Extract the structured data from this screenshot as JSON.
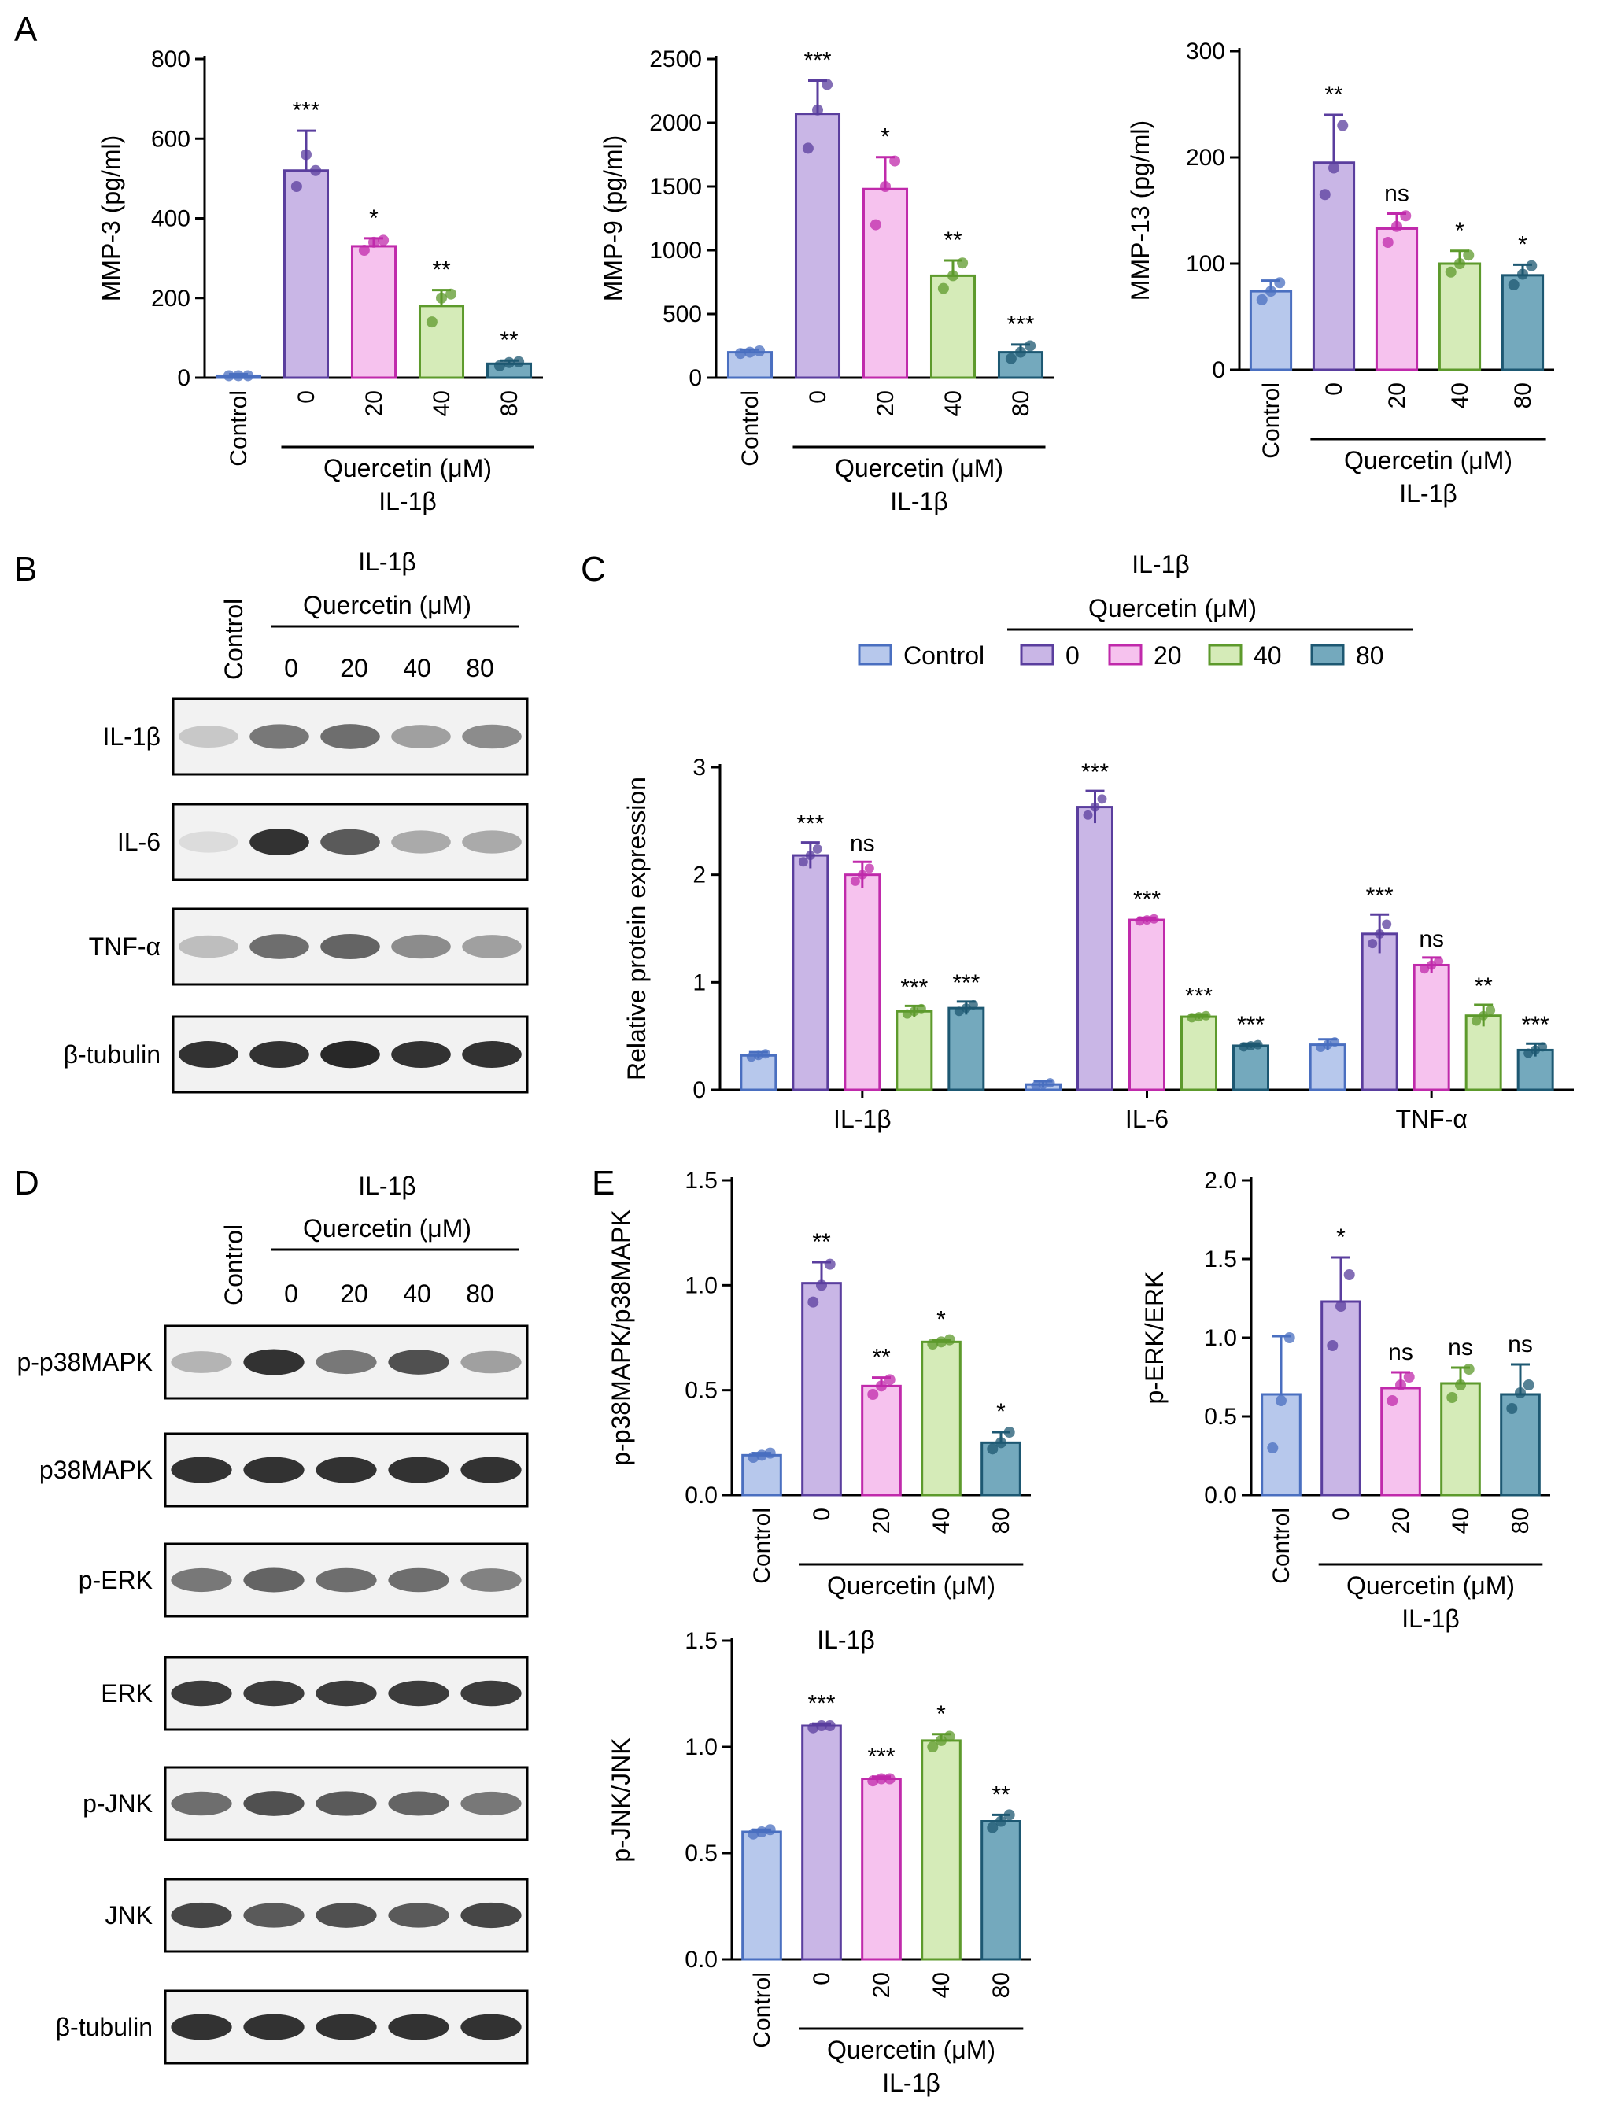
{
  "panel_labels": [
    "A",
    "B",
    "C",
    "D",
    "E"
  ],
  "colors": {
    "Control": {
      "fill": "#b7c8ec",
      "stroke": "#4a6fc0"
    },
    "0": {
      "fill": "#c9b6e6",
      "stroke": "#5a3e9e"
    },
    "20": {
      "fill": "#f6c2ee",
      "stroke": "#c02aab"
    },
    "40": {
      "fill": "#d5ebb8",
      "stroke": "#5d9a2c"
    },
    "80": {
      "fill": "#74a9bd",
      "stroke": "#1d5872"
    }
  },
  "text": {
    "il1b": "IL-1β",
    "quercetin": "Quercetin (μM)",
    "control": "Control"
  },
  "blot_B": {
    "header_top": "IL-1β",
    "header_mid": "Quercetin (μM)",
    "control": "Control",
    "lanes": [
      "0",
      "20",
      "40",
      "80"
    ],
    "rows": [
      {
        "label": "IL-1β",
        "intensity": [
          0.15,
          0.55,
          0.6,
          0.35,
          0.45
        ]
      },
      {
        "label": "IL-6",
        "intensity": [
          0.05,
          0.9,
          0.7,
          0.3,
          0.3
        ]
      },
      {
        "label": "TNF-α",
        "intensity": [
          0.2,
          0.6,
          0.65,
          0.45,
          0.35
        ]
      },
      {
        "label": "β-tubulin",
        "intensity": [
          0.9,
          0.9,
          0.95,
          0.9,
          0.9
        ]
      }
    ]
  },
  "blot_D": {
    "header_top": "IL-1β",
    "header_mid": "Quercetin (μM)",
    "control": "Control",
    "lanes": [
      "0",
      "20",
      "40",
      "80"
    ],
    "rows": [
      {
        "label": "p-p38MAPK",
        "intensity": [
          0.25,
          0.9,
          0.55,
          0.75,
          0.35
        ]
      },
      {
        "label": "p38MAPK",
        "intensity": [
          0.9,
          0.9,
          0.9,
          0.9,
          0.9
        ]
      },
      {
        "label": "p-ERK",
        "intensity": [
          0.55,
          0.65,
          0.6,
          0.6,
          0.5
        ]
      },
      {
        "label": "ERK",
        "intensity": [
          0.85,
          0.85,
          0.85,
          0.85,
          0.85
        ]
      },
      {
        "label": "p-JNK",
        "intensity": [
          0.6,
          0.75,
          0.7,
          0.65,
          0.55
        ]
      },
      {
        "label": "JNK",
        "intensity": [
          0.8,
          0.7,
          0.75,
          0.7,
          0.8
        ]
      },
      {
        "label": "β-tubulin",
        "intensity": [
          0.9,
          0.9,
          0.9,
          0.9,
          0.9
        ]
      }
    ]
  },
  "chart_data": [
    {
      "id": "mmp3",
      "panel": "A",
      "type": "bar",
      "ylabel": "MMP-3 (pg/ml)",
      "ylim": [
        0,
        800
      ],
      "yticks": [
        0,
        200,
        400,
        600,
        800
      ],
      "categories": [
        "Control",
        "0",
        "20",
        "40",
        "80"
      ],
      "values": [
        5,
        520,
        330,
        180,
        35
      ],
      "errors": [
        4,
        100,
        20,
        40,
        8
      ],
      "points": [
        [
          5,
          5,
          5
        ],
        [
          480,
          560,
          520
        ],
        [
          320,
          340,
          345
        ],
        [
          140,
          200,
          210
        ],
        [
          30,
          38,
          40
        ]
      ],
      "significance": [
        "",
        "***",
        "*",
        "**",
        "**"
      ],
      "group_label": "Quercetin (μM)",
      "treatment": "IL-1β"
    },
    {
      "id": "mmp9",
      "panel": "A",
      "type": "bar",
      "ylabel": "MMP-9 (pg/ml)",
      "ylim": [
        0,
        2500
      ],
      "yticks": [
        0,
        500,
        1000,
        1500,
        2000,
        2500
      ],
      "categories": [
        "Control",
        "0",
        "20",
        "40",
        "80"
      ],
      "values": [
        200,
        2070,
        1480,
        800,
        200
      ],
      "errors": [
        20,
        260,
        250,
        120,
        60
      ],
      "points": [
        [
          190,
          200,
          210
        ],
        [
          1800,
          2100,
          2300
        ],
        [
          1200,
          1500,
          1700
        ],
        [
          700,
          800,
          900
        ],
        [
          150,
          200,
          250
        ]
      ],
      "significance": [
        "",
        "***",
        "*",
        "**",
        "***"
      ],
      "group_label": "Quercetin (μM)",
      "treatment": "IL-1β"
    },
    {
      "id": "mmp13",
      "panel": "A",
      "type": "bar",
      "ylabel": "MMP-13 (pg/ml)",
      "ylim": [
        0,
        300
      ],
      "yticks": [
        0,
        100,
        200,
        300
      ],
      "categories": [
        "Control",
        "0",
        "20",
        "40",
        "80"
      ],
      "values": [
        74,
        195,
        133,
        100,
        89
      ],
      "errors": [
        10,
        45,
        14,
        12,
        10
      ],
      "points": [
        [
          66,
          74,
          82
        ],
        [
          165,
          190,
          230
        ],
        [
          120,
          135,
          145
        ],
        [
          92,
          100,
          108
        ],
        [
          80,
          90,
          98
        ]
      ],
      "significance": [
        "",
        "**",
        "ns",
        "*",
        "*"
      ],
      "group_label": "Quercetin (μM)",
      "treatment": "IL-1β"
    },
    {
      "id": "relative_protein",
      "panel": "C",
      "type": "bar",
      "ylabel": "Relative protein expression",
      "ylim": [
        0,
        3
      ],
      "yticks": [
        0,
        1,
        2,
        3
      ],
      "categories": [
        "IL-1β",
        "IL-6",
        "TNF-α"
      ],
      "legend_title_top": "IL-1β",
      "legend_title_mid": "Quercetin (μM)",
      "series": [
        {
          "name": "Control",
          "values": [
            0.32,
            0.05,
            0.42
          ],
          "errors": [
            0.03,
            0.03,
            0.05
          ],
          "significance": [
            "",
            "",
            ""
          ]
        },
        {
          "name": "0",
          "values": [
            2.18,
            2.63,
            1.45
          ],
          "errors": [
            0.12,
            0.15,
            0.18
          ],
          "significance": [
            "***",
            "***",
            "***"
          ]
        },
        {
          "name": "20",
          "values": [
            2.0,
            1.58,
            1.16
          ],
          "errors": [
            0.12,
            0.02,
            0.07
          ],
          "significance": [
            "ns",
            "***",
            "ns"
          ]
        },
        {
          "name": "40",
          "values": [
            0.73,
            0.68,
            0.69
          ],
          "errors": [
            0.05,
            0.02,
            0.1
          ],
          "significance": [
            "***",
            "***",
            "**"
          ]
        },
        {
          "name": "80",
          "values": [
            0.76,
            0.41,
            0.37
          ],
          "errors": [
            0.06,
            0.02,
            0.06
          ],
          "significance": [
            "***",
            "***",
            "***"
          ]
        }
      ]
    },
    {
      "id": "p38",
      "panel": "E",
      "type": "bar",
      "ylabel": "p-p38MAPK/p38MAPK",
      "ylim": [
        0,
        1.5
      ],
      "yticks": [
        "0.0",
        "0.5",
        "1.0",
        "1.5"
      ],
      "categories": [
        "Control",
        "0",
        "20",
        "40",
        "80"
      ],
      "values": [
        0.19,
        1.01,
        0.52,
        0.73,
        0.25
      ],
      "errors": [
        0.01,
        0.1,
        0.04,
        0.01,
        0.05
      ],
      "points": [
        [
          0.18,
          0.19,
          0.2
        ],
        [
          0.92,
          1.0,
          1.1
        ],
        [
          0.48,
          0.52,
          0.55
        ],
        [
          0.72,
          0.73,
          0.74
        ],
        [
          0.22,
          0.25,
          0.3
        ]
      ],
      "significance": [
        "",
        "**",
        "**",
        "*",
        "*"
      ],
      "group_label": "Quercetin (μM)",
      "treatment": "IL-1β"
    },
    {
      "id": "erk",
      "panel": "E",
      "type": "bar",
      "ylabel": "p-ERK/ERK",
      "ylim": [
        0,
        2.0
      ],
      "yticks": [
        "0.0",
        "0.5",
        "1.0",
        "1.5",
        "2.0"
      ],
      "categories": [
        "Control",
        "0",
        "20",
        "40",
        "80"
      ],
      "values": [
        0.64,
        1.23,
        0.68,
        0.71,
        0.64
      ],
      "errors": [
        0.37,
        0.28,
        0.1,
        0.1,
        0.19
      ],
      "points": [
        [
          0.3,
          0.6,
          1.0
        ],
        [
          0.95,
          1.2,
          1.4
        ],
        [
          0.6,
          0.7,
          0.75
        ],
        [
          0.62,
          0.7,
          0.8
        ],
        [
          0.55,
          0.65,
          0.7
        ]
      ],
      "significance": [
        "",
        "*",
        "ns",
        "ns",
        "ns"
      ],
      "group_label": "Quercetin (μM)",
      "treatment": "IL-1β"
    },
    {
      "id": "jnk",
      "panel": "E",
      "type": "bar",
      "ylabel": "p-JNK/JNK",
      "ylim": [
        0,
        1.5
      ],
      "yticks": [
        "0.0",
        "0.5",
        "1.0",
        "1.5"
      ],
      "categories": [
        "Control",
        "0",
        "20",
        "40",
        "80"
      ],
      "values": [
        0.6,
        1.1,
        0.85,
        1.03,
        0.65
      ],
      "errors": [
        0.01,
        0.01,
        0.01,
        0.03,
        0.03
      ],
      "points": [
        [
          0.59,
          0.6,
          0.61
        ],
        [
          1.09,
          1.1,
          1.1
        ],
        [
          0.84,
          0.85,
          0.85
        ],
        [
          1.0,
          1.03,
          1.05
        ],
        [
          0.62,
          0.65,
          0.68
        ]
      ],
      "significance": [
        "",
        "***",
        "***",
        "*",
        "**"
      ],
      "group_label": "Quercetin (μM)",
      "treatment": "IL-1β"
    }
  ]
}
